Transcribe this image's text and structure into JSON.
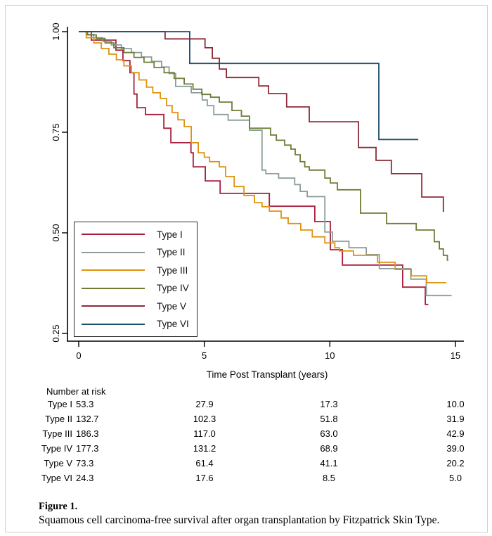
{
  "caption": {
    "label": "Figure 1.",
    "text": "Squamous cell carcinoma-free survival after organ transplantation by Fitzpatrick Skin Type."
  },
  "risk_table": {
    "title": "Number at risk",
    "time_columns": [
      0,
      5,
      10,
      15
    ],
    "rows": [
      {
        "label": "Type I",
        "values": [
          "53.3",
          "27.9",
          "17.3",
          "10.0"
        ]
      },
      {
        "label": "Type II",
        "values": [
          "132.7",
          "102.3",
          "51.8",
          "31.9"
        ]
      },
      {
        "label": "Type III",
        "values": [
          "186.3",
          "117.0",
          "63.0",
          "42.9"
        ]
      },
      {
        "label": "Type IV",
        "values": [
          "177.3",
          "131.2",
          "68.9",
          "39.0"
        ]
      },
      {
        "label": "Type V",
        "values": [
          "73.3",
          "61.4",
          "41.1",
          "20.2"
        ]
      },
      {
        "label": "Type VI",
        "values": [
          "24.3",
          "17.6",
          "8.5",
          "5.0"
        ]
      }
    ]
  },
  "chart_data": {
    "type": "line",
    "subtype": "kaplan-meier-step",
    "title": "",
    "xlabel": "Time Post Transplant (years)",
    "ylabel": "",
    "xlim": [
      0,
      15
    ],
    "ylim": [
      0.25,
      1.0
    ],
    "x_ticks": [
      0,
      5,
      10,
      15
    ],
    "y_ticks": [
      "0.25",
      "0.50",
      "0.75",
      "1.00"
    ],
    "grid": false,
    "legend_position": "inside-lower-left",
    "axis_color": "#000000",
    "series": [
      {
        "name": "Type I",
        "color": "#a81e3c",
        "end": 13.92,
        "points": [
          [
            0,
            1.0
          ],
          [
            0.5,
            0.979
          ],
          [
            1.48,
            0.954
          ],
          [
            1.76,
            0.928
          ],
          [
            2.04,
            0.898
          ],
          [
            2.2,
            0.845
          ],
          [
            2.32,
            0.811
          ],
          [
            2.66,
            0.794
          ],
          [
            3.39,
            0.76
          ],
          [
            3.67,
            0.724
          ],
          [
            4.47,
            0.699
          ],
          [
            4.56,
            0.664
          ],
          [
            5.04,
            0.629
          ],
          [
            5.63,
            0.598
          ],
          [
            7.59,
            0.566
          ],
          [
            9.4,
            0.528
          ],
          [
            10.02,
            0.458
          ],
          [
            10.5,
            0.42
          ],
          [
            12.9,
            0.365
          ],
          [
            13.8,
            0.322
          ]
        ]
      },
      {
        "name": "Type II",
        "color": "#8c9e99",
        "end": 14.85,
        "points": [
          [
            0,
            1.0
          ],
          [
            0.3,
            0.993
          ],
          [
            0.6,
            0.985
          ],
          [
            0.95,
            0.976
          ],
          [
            1.3,
            0.967
          ],
          [
            1.7,
            0.958
          ],
          [
            2.1,
            0.948
          ],
          [
            2.5,
            0.937
          ],
          [
            2.9,
            0.926
          ],
          [
            3.3,
            0.912
          ],
          [
            3.6,
            0.896
          ],
          [
            3.86,
            0.864
          ],
          [
            4.48,
            0.848
          ],
          [
            4.92,
            0.83
          ],
          [
            5.12,
            0.816
          ],
          [
            5.38,
            0.794
          ],
          [
            5.95,
            0.78
          ],
          [
            6.8,
            0.755
          ],
          [
            7.3,
            0.656
          ],
          [
            7.45,
            0.647
          ],
          [
            7.96,
            0.636
          ],
          [
            8.6,
            0.62
          ],
          [
            8.82,
            0.603
          ],
          [
            9.1,
            0.59
          ],
          [
            9.8,
            0.502
          ],
          [
            10.1,
            0.479
          ],
          [
            10.76,
            0.463
          ],
          [
            11.45,
            0.446
          ],
          [
            11.97,
            0.411
          ],
          [
            13.22,
            0.385
          ],
          [
            13.84,
            0.344
          ]
        ]
      },
      {
        "name": "Type III",
        "color": "#e0920f",
        "end": 14.64,
        "points": [
          [
            0,
            1.0
          ],
          [
            0.3,
            0.985
          ],
          [
            0.6,
            0.972
          ],
          [
            0.9,
            0.958
          ],
          [
            1.2,
            0.944
          ],
          [
            1.5,
            0.93
          ],
          [
            1.8,
            0.915
          ],
          [
            2.1,
            0.898
          ],
          [
            2.4,
            0.88
          ],
          [
            2.7,
            0.862
          ],
          [
            2.95,
            0.848
          ],
          [
            3.25,
            0.834
          ],
          [
            3.5,
            0.816
          ],
          [
            3.72,
            0.799
          ],
          [
            3.95,
            0.781
          ],
          [
            4.2,
            0.764
          ],
          [
            4.48,
            0.724
          ],
          [
            4.76,
            0.699
          ],
          [
            5.0,
            0.688
          ],
          [
            5.21,
            0.677
          ],
          [
            5.6,
            0.664
          ],
          [
            5.85,
            0.64
          ],
          [
            6.19,
            0.615
          ],
          [
            6.58,
            0.593
          ],
          [
            7.0,
            0.575
          ],
          [
            7.3,
            0.565
          ],
          [
            7.59,
            0.554
          ],
          [
            8.06,
            0.537
          ],
          [
            8.34,
            0.523
          ],
          [
            8.84,
            0.507
          ],
          [
            9.3,
            0.49
          ],
          [
            9.8,
            0.475
          ],
          [
            10.2,
            0.463
          ],
          [
            10.38,
            0.455
          ],
          [
            10.94,
            0.444
          ],
          [
            11.9,
            0.427
          ],
          [
            12.6,
            0.409
          ],
          [
            13.24,
            0.393
          ],
          [
            13.85,
            0.376
          ]
        ]
      },
      {
        "name": "Type IV",
        "color": "#6d7d36",
        "end": 14.72,
        "points": [
          [
            0,
            1.0
          ],
          [
            0.35,
            0.992
          ],
          [
            0.7,
            0.983
          ],
          [
            1.05,
            0.972
          ],
          [
            1.4,
            0.96
          ],
          [
            1.8,
            0.948
          ],
          [
            2.2,
            0.936
          ],
          [
            2.6,
            0.924
          ],
          [
            3.0,
            0.911
          ],
          [
            3.4,
            0.898
          ],
          [
            3.8,
            0.884
          ],
          [
            4.2,
            0.87
          ],
          [
            4.55,
            0.857
          ],
          [
            4.9,
            0.844
          ],
          [
            5.25,
            0.837
          ],
          [
            5.6,
            0.825
          ],
          [
            6.1,
            0.804
          ],
          [
            6.48,
            0.79
          ],
          [
            6.8,
            0.76
          ],
          [
            7.64,
            0.743
          ],
          [
            7.87,
            0.73
          ],
          [
            8.2,
            0.718
          ],
          [
            8.45,
            0.708
          ],
          [
            8.62,
            0.694
          ],
          [
            8.82,
            0.677
          ],
          [
            9.0,
            0.664
          ],
          [
            9.18,
            0.656
          ],
          [
            9.8,
            0.636
          ],
          [
            10.02,
            0.624
          ],
          [
            10.3,
            0.607
          ],
          [
            11.22,
            0.549
          ],
          [
            12.26,
            0.523
          ],
          [
            13.44,
            0.507
          ],
          [
            14.16,
            0.478
          ],
          [
            14.36,
            0.46
          ],
          [
            14.52,
            0.444
          ],
          [
            14.68,
            0.432
          ]
        ]
      },
      {
        "name": "Type V",
        "color": "#8e2a38",
        "end": 14.55,
        "points": [
          [
            0,
            1.0
          ],
          [
            3.44,
            0.982
          ],
          [
            5.03,
            0.96
          ],
          [
            5.32,
            0.934
          ],
          [
            5.6,
            0.907
          ],
          [
            5.88,
            0.886
          ],
          [
            7.17,
            0.865
          ],
          [
            7.56,
            0.846
          ],
          [
            8.28,
            0.813
          ],
          [
            9.18,
            0.776
          ],
          [
            11.14,
            0.712
          ],
          [
            11.84,
            0.68
          ],
          [
            12.45,
            0.647
          ],
          [
            13.66,
            0.589
          ],
          [
            14.52,
            0.554
          ]
        ]
      },
      {
        "name": "Type VI",
        "color": "#1f4e6e",
        "end": 13.52,
        "points": [
          [
            0,
            1.0
          ],
          [
            4.42,
            0.921
          ],
          [
            11.95,
            0.732
          ]
        ]
      }
    ]
  }
}
